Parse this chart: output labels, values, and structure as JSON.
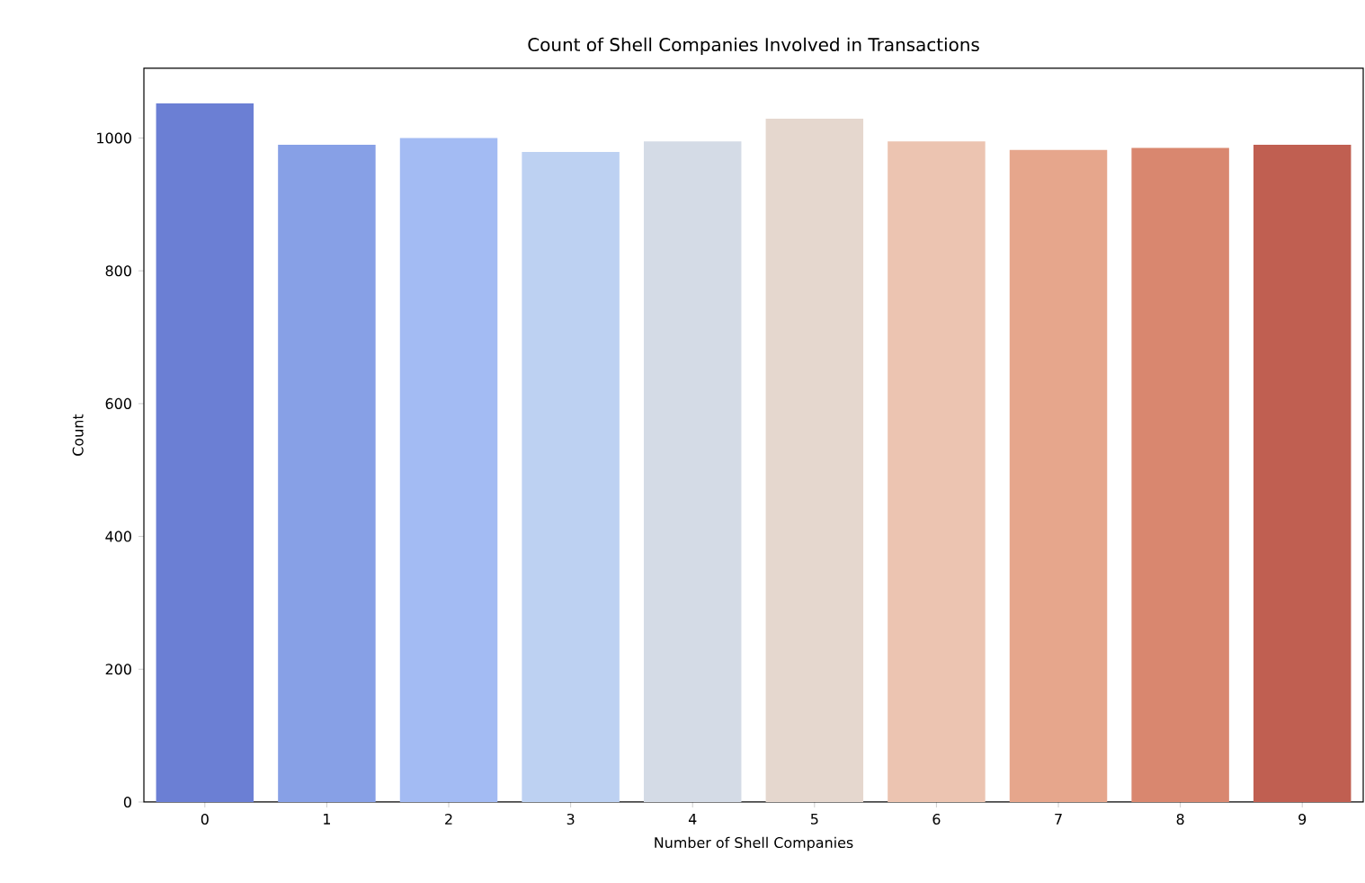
{
  "chart_data": {
    "type": "bar",
    "title": "Count of Shell Companies Involved in Transactions",
    "xlabel": "Number of Shell Companies",
    "ylabel": "Count",
    "categories": [
      "0",
      "1",
      "2",
      "3",
      "4",
      "5",
      "6",
      "7",
      "8",
      "9"
    ],
    "values": [
      1052,
      990,
      1000,
      979,
      995,
      1029,
      995,
      982,
      985,
      990
    ],
    "colors": [
      "#6b7fd4",
      "#87a0e6",
      "#a3bbf3",
      "#bdd1f2",
      "#d4dbe6",
      "#e5d7ce",
      "#ecc4b1",
      "#e6a68c",
      "#d9876f",
      "#c05f51"
    ],
    "ylim": [
      0,
      1105
    ],
    "yticks": [
      0,
      200,
      400,
      600,
      800,
      1000
    ],
    "grid": false
  }
}
